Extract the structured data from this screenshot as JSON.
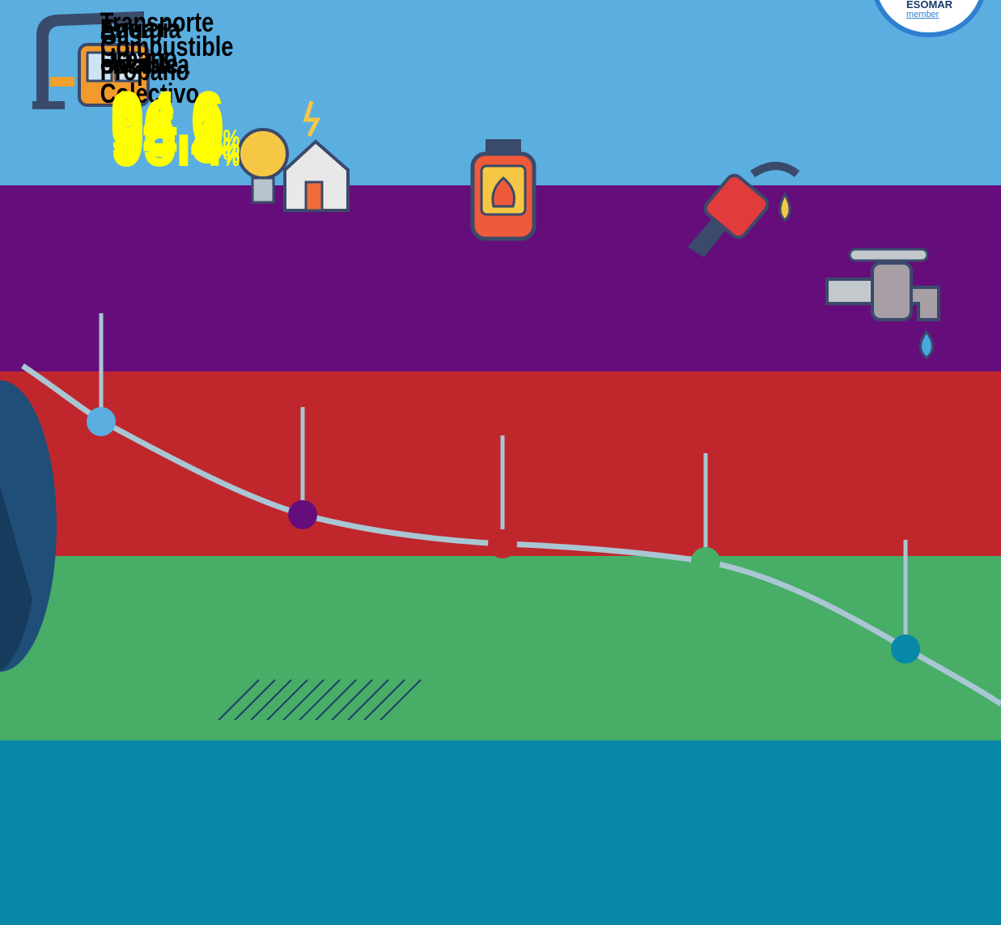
{
  "logo": {
    "text": "ESOMAR",
    "sub": "member"
  },
  "items": [
    {
      "label_lines": [
        "Transporte",
        "Urbano",
        "Colectivo"
      ],
      "value": "96.9",
      "unit": "%"
    },
    {
      "label_lines": [
        "Energía",
        "eléctrica"
      ],
      "value": "96.1",
      "unit": "%"
    },
    {
      "label_lines": [
        "Gas",
        "Propano"
      ],
      "value": "95.4",
      "unit": "%"
    },
    {
      "label_lines": [
        "Combustible"
      ],
      "value": "94.6",
      "unit": "%"
    },
    {
      "label_lines": [
        "Agua",
        "potable"
      ],
      "value": "94.3",
      "unit": "%"
    }
  ]
}
